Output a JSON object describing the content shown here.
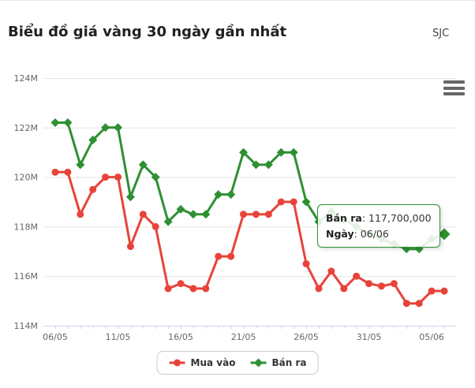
{
  "header": {
    "title": "Biểu đồ giá vàng 30 ngày gần nhất",
    "source": "SJC"
  },
  "icons": {
    "context_menu": "hamburger-menu-icon"
  },
  "chart_data": {
    "type": "line",
    "unit": "M (triệu đồng)",
    "categories": [
      "06/05",
      "07/05",
      "08/05",
      "09/05",
      "10/05",
      "11/05",
      "12/05",
      "13/05",
      "14/05",
      "15/05",
      "16/05",
      "17/05",
      "18/05",
      "19/05",
      "20/05",
      "21/05",
      "22/05",
      "23/05",
      "24/05",
      "25/05",
      "26/05",
      "27/05",
      "28/05",
      "29/05",
      "30/05",
      "31/05",
      "01/06",
      "02/06",
      "03/06",
      "04/06",
      "05/06",
      "06/06"
    ],
    "series": [
      {
        "name": "Mua vào",
        "color": "#e8433a",
        "marker": "circle",
        "values": [
          120.2,
          120.2,
          118.5,
          119.5,
          120.0,
          120.0,
          117.2,
          118.5,
          118.0,
          115.5,
          115.7,
          115.5,
          115.5,
          116.8,
          116.8,
          118.5,
          118.5,
          118.5,
          119.0,
          119.0,
          116.5,
          115.5,
          116.2,
          115.5,
          116.0,
          115.7,
          115.6,
          115.7,
          114.9,
          114.9,
          115.4,
          115.4
        ]
      },
      {
        "name": "Bán ra",
        "color": "#2e9032",
        "marker": "diamond",
        "values": [
          122.2,
          122.2,
          120.5,
          121.5,
          122.0,
          122.0,
          119.2,
          120.5,
          120.0,
          118.2,
          118.7,
          118.5,
          118.5,
          119.3,
          119.3,
          121.0,
          120.5,
          120.5,
          121.0,
          121.0,
          119.0,
          118.2,
          118.6,
          118.3,
          118.0,
          117.7,
          117.5,
          117.3,
          117.1,
          117.1,
          117.5,
          117.7
        ]
      }
    ],
    "ylim": [
      114,
      124
    ],
    "y_ticks": {
      "values": [
        114,
        116,
        118,
        120,
        122,
        124
      ],
      "labels": [
        "114M",
        "116M",
        "118M",
        "120M",
        "122M",
        "124M"
      ]
    },
    "x_tick_labels": {
      "indices": [
        0,
        5,
        10,
        15,
        20,
        25,
        30
      ],
      "labels": [
        "06/05",
        "11/05",
        "16/05",
        "21/05",
        "26/05",
        "31/05",
        "05/06"
      ]
    },
    "grid": true,
    "legend_position": "bottom"
  },
  "tooltip": {
    "line1_label": "Bán ra",
    "line1_value": ": 117,700,000",
    "line2_label": "Ngày",
    "line2_value": ": 06/06",
    "series_index": 1,
    "point_index": 31
  }
}
